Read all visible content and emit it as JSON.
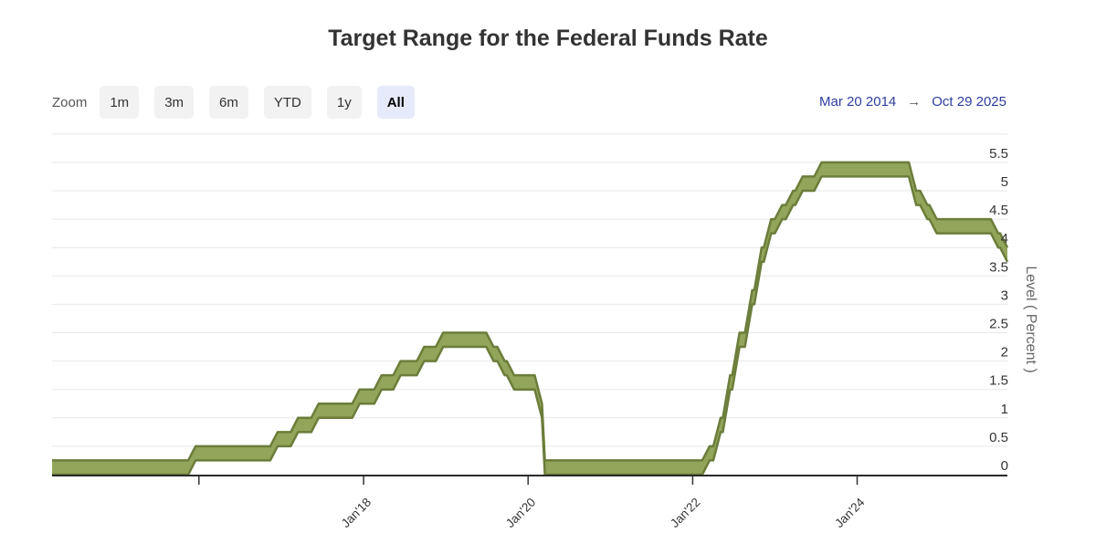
{
  "header": {
    "title": "Target Range for the Federal Funds Rate"
  },
  "range_selector": {
    "zoom_label": "Zoom",
    "buttons": [
      {
        "label": "1m",
        "selected": false
      },
      {
        "label": "3m",
        "selected": false
      },
      {
        "label": "6m",
        "selected": false
      },
      {
        "label": "YTD",
        "selected": false
      },
      {
        "label": "1y",
        "selected": false
      },
      {
        "label": "All",
        "selected": true
      }
    ],
    "from_date": "Mar 20 2014",
    "arrow_glyph": "→",
    "to_date": "Oct 29 2025"
  },
  "colors": {
    "range_button_bg": "#f2f2f2",
    "range_button_selected_bg": "#e7eafa",
    "range_date_text": "#2d3ea1",
    "title_text": "#333333"
  },
  "chart_data": {
    "type": "area",
    "subtype": "arearange-band",
    "title": "Target Range for the Federal Funds Rate",
    "x_range": [
      "2014-03-20",
      "2025-10-29"
    ],
    "grid": "horizontal-on",
    "legend": "none",
    "y_axis": {
      "title": "Level ( Percent )",
      "side": "right",
      "min": 0,
      "max": 6,
      "tick_interval": 0.5,
      "tick_labels": [
        "0",
        "0.5",
        "1",
        "1.5",
        "2",
        "2.5",
        "3",
        "3.5",
        "4",
        "4.5",
        "5",
        "5.5"
      ]
    },
    "x_ticks": [
      {
        "date": "2016-01-01",
        "label": ""
      },
      {
        "date": "2018-01-01",
        "label": "Jan'18"
      },
      {
        "date": "2020-01-01",
        "label": "Jan'20"
      },
      {
        "date": "2022-01-01",
        "label": "Jan'22"
      },
      {
        "date": "2024-01-01",
        "label": "Jan'24"
      }
    ],
    "series": [
      {
        "value_format": [
          "date",
          "range_lower_pct",
          "range_upper_pct"
        ],
        "points": [
          [
            "2014-03-20",
            0.0,
            0.25
          ],
          [
            "2015-12-17",
            0.25,
            0.5
          ],
          [
            "2016-12-15",
            0.5,
            0.75
          ],
          [
            "2017-03-16",
            0.75,
            1.0
          ],
          [
            "2017-06-15",
            1.0,
            1.25
          ],
          [
            "2017-12-14",
            1.25,
            1.5
          ],
          [
            "2018-03-22",
            1.5,
            1.75
          ],
          [
            "2018-06-14",
            1.75,
            2.0
          ],
          [
            "2018-09-27",
            2.0,
            2.25
          ],
          [
            "2018-12-20",
            2.25,
            2.5
          ],
          [
            "2019-08-01",
            2.0,
            2.25
          ],
          [
            "2019-09-19",
            1.75,
            2.0
          ],
          [
            "2019-10-31",
            1.5,
            1.75
          ],
          [
            "2020-03-03",
            1.0,
            1.25
          ],
          [
            "2020-03-16",
            0.0,
            0.25
          ],
          [
            "2022-03-17",
            0.25,
            0.5
          ],
          [
            "2022-05-05",
            0.75,
            1.0
          ],
          [
            "2022-06-16",
            1.5,
            1.75
          ],
          [
            "2022-07-28",
            2.25,
            2.5
          ],
          [
            "2022-09-22",
            3.0,
            3.25
          ],
          [
            "2022-11-03",
            3.75,
            4.0
          ],
          [
            "2022-12-15",
            4.25,
            4.5
          ],
          [
            "2023-02-02",
            4.5,
            4.75
          ],
          [
            "2023-03-23",
            4.75,
            5.0
          ],
          [
            "2023-05-04",
            5.0,
            5.25
          ],
          [
            "2023-07-27",
            5.25,
            5.5
          ],
          [
            "2024-09-19",
            4.75,
            5.0
          ],
          [
            "2024-11-08",
            4.5,
            4.75
          ],
          [
            "2024-12-19",
            4.25,
            4.5
          ],
          [
            "2025-09-18",
            4.0,
            4.25
          ],
          [
            "2025-10-29",
            3.75,
            4.0
          ]
        ]
      }
    ],
    "colors": {
      "band_fill": "#93a55a",
      "band_stroke": "#6b7d3a",
      "gridline": "#e7e7e7",
      "axis_line": "#2a2a2a",
      "tick_mark": "#333333",
      "x_label_text": "#333333",
      "y_label_text": "#333333",
      "y_title_text": "#666666"
    }
  }
}
